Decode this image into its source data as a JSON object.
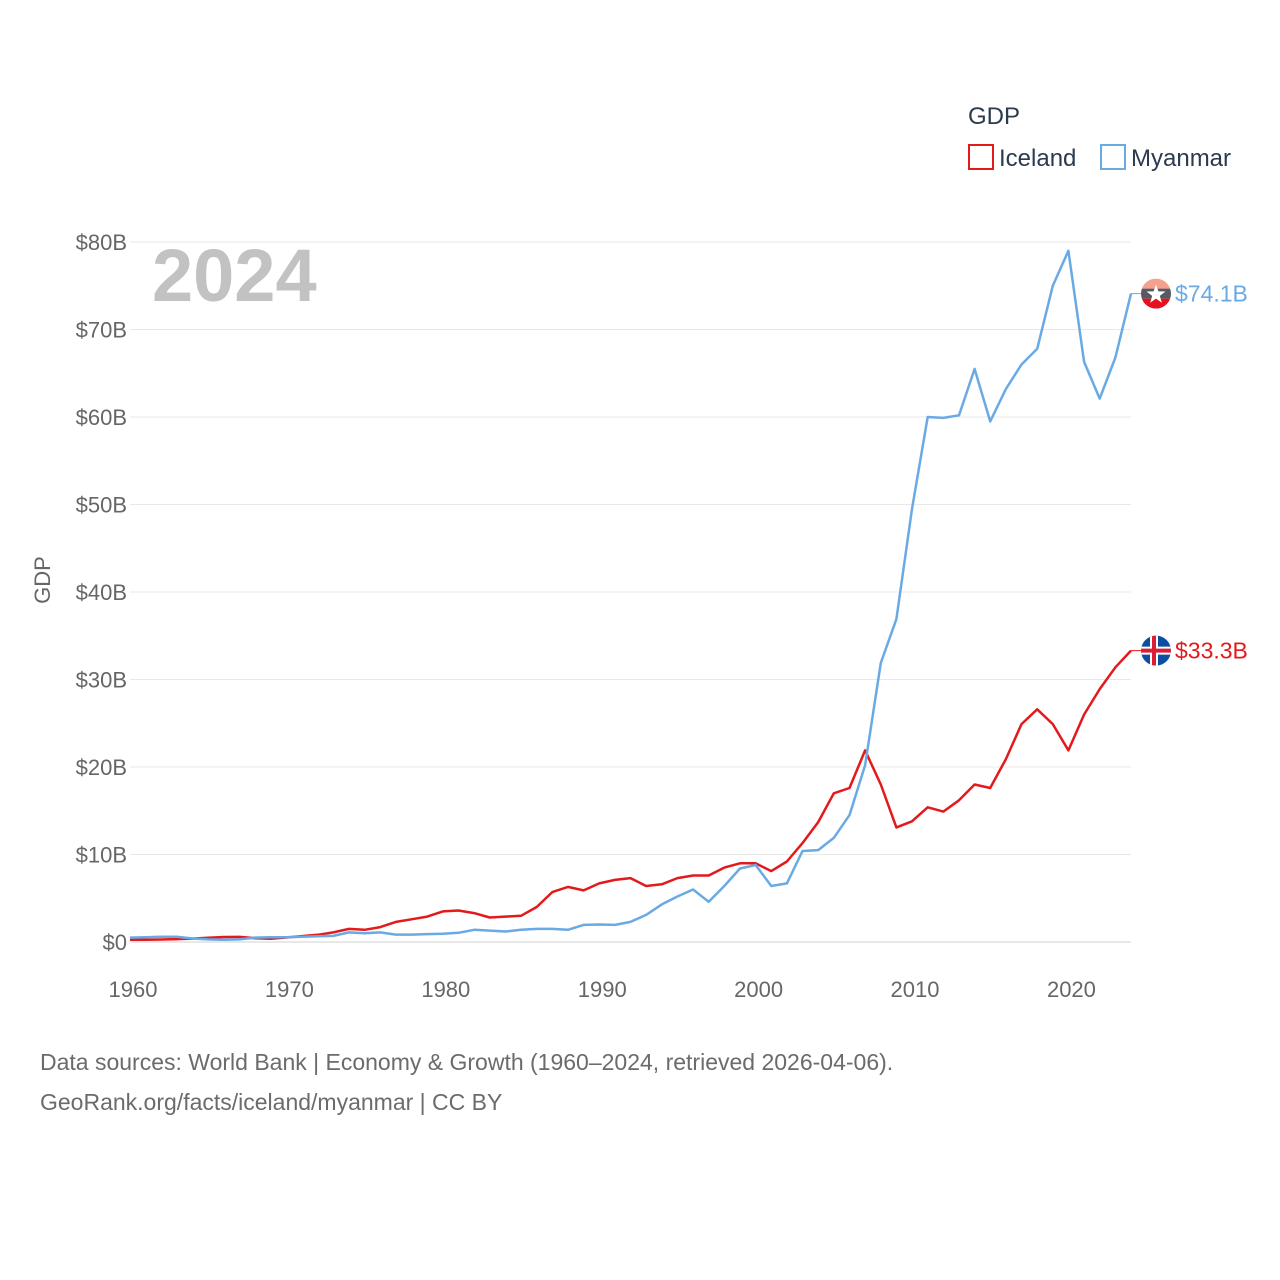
{
  "chart_data": {
    "type": "line",
    "year_label": "2024",
    "ylabel": "GDP",
    "ylim": [
      0,
      80
    ],
    "y_ticks": [
      {
        "value": 0,
        "label": "$0"
      },
      {
        "value": 10,
        "label": "$10B"
      },
      {
        "value": 20,
        "label": "$20B"
      },
      {
        "value": 30,
        "label": "$30B"
      },
      {
        "value": 40,
        "label": "$40B"
      },
      {
        "value": 50,
        "label": "$50B"
      },
      {
        "value": 60,
        "label": "$60B"
      },
      {
        "value": 70,
        "label": "$70B"
      },
      {
        "value": 80,
        "label": "$80B"
      }
    ],
    "xlim": [
      1960,
      2024
    ],
    "x_ticks": [
      {
        "value": 1960,
        "label": "1960"
      },
      {
        "value": 1970,
        "label": "1970"
      },
      {
        "value": 1980,
        "label": "1980"
      },
      {
        "value": 1990,
        "label": "1990"
      },
      {
        "value": 2000,
        "label": "2000"
      },
      {
        "value": 2010,
        "label": "2010"
      },
      {
        "value": 2020,
        "label": "2020"
      }
    ],
    "legend": {
      "title": "GDP",
      "placement": "top-right"
    },
    "x": [
      1960,
      1961,
      1962,
      1963,
      1964,
      1965,
      1966,
      1967,
      1968,
      1969,
      1970,
      1971,
      1972,
      1973,
      1974,
      1975,
      1976,
      1977,
      1978,
      1979,
      1980,
      1981,
      1982,
      1983,
      1984,
      1985,
      1986,
      1987,
      1988,
      1989,
      1990,
      1991,
      1992,
      1993,
      1994,
      1995,
      1996,
      1997,
      1998,
      1999,
      2000,
      2001,
      2002,
      2003,
      2004,
      2005,
      2006,
      2007,
      2008,
      2009,
      2010,
      2011,
      2012,
      2013,
      2014,
      2015,
      2016,
      2017,
      2018,
      2019,
      2020,
      2021,
      2022,
      2023,
      2024
    ],
    "series": [
      {
        "name": "Iceland",
        "color": "#e31a1c",
        "end_label": "$33.3B",
        "flag": "iceland-flag-icon",
        "values": [
          0.25,
          0.25,
          0.28,
          0.33,
          0.39,
          0.48,
          0.57,
          0.58,
          0.43,
          0.38,
          0.52,
          0.67,
          0.82,
          1.1,
          1.5,
          1.4,
          1.7,
          2.3,
          2.6,
          2.9,
          3.5,
          3.6,
          3.3,
          2.8,
          2.9,
          3.0,
          4.0,
          5.7,
          6.3,
          5.9,
          6.7,
          7.1,
          7.3,
          6.4,
          6.6,
          7.3,
          7.6,
          7.6,
          8.5,
          9.0,
          9.0,
          8.1,
          9.2,
          11.3,
          13.7,
          17.0,
          17.6,
          21.9,
          18.0,
          13.1,
          13.8,
          15.4,
          14.9,
          16.2,
          18.0,
          17.6,
          20.9,
          24.9,
          26.6,
          24.9,
          21.9,
          26.0,
          28.9,
          31.4,
          33.3
        ]
      },
      {
        "name": "Myanmar",
        "color": "#6aaae4",
        "end_label": "$74.1B",
        "flag": "myanmar-flag-icon",
        "values": [
          0.5,
          0.55,
          0.6,
          0.6,
          0.4,
          0.3,
          0.25,
          0.3,
          0.5,
          0.55,
          0.55,
          0.6,
          0.65,
          0.7,
          1.1,
          1.0,
          1.1,
          0.85,
          0.85,
          0.9,
          0.95,
          1.05,
          1.4,
          1.3,
          1.2,
          1.4,
          1.5,
          1.5,
          1.4,
          1.95,
          2.0,
          1.95,
          2.3,
          3.1,
          4.3,
          5.2,
          6.0,
          4.6,
          6.4,
          8.4,
          8.8,
          6.4,
          6.7,
          10.4,
          10.5,
          11.9,
          14.5,
          20.2,
          31.9,
          36.9,
          49.5,
          60.0,
          59.9,
          60.2,
          65.5,
          59.5,
          63.2,
          66.0,
          67.8,
          75.0,
          79.0,
          66.3,
          62.1,
          66.8,
          74.1
        ]
      }
    ]
  },
  "footer": {
    "line1": "Data sources: World Bank | Economy & Growth (1960–2024, retrieved 2026-04-06).",
    "line2": "GeoRank.org/facts/iceland/myanmar | CC BY"
  }
}
